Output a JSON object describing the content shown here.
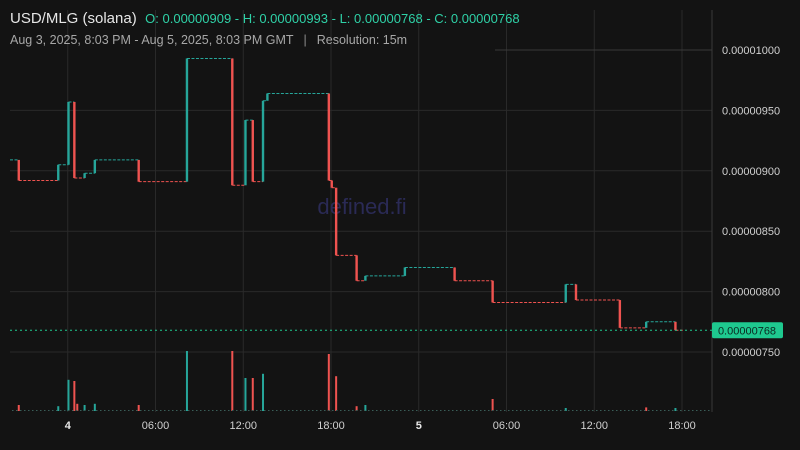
{
  "header": {
    "pair": "USD/MLG (solana)",
    "ohlc": "O: 0.00000909 - H: 0.00000993 - L: 0.00000768 - C: 0.00000768",
    "range": "Aug 3, 2025, 8:03 PM - Aug 5, 2025, 8:03 PM GMT",
    "separator": "|",
    "resolution": "Resolution: 15m"
  },
  "watermark": "defined.fi",
  "colors": {
    "background": "#131313",
    "up": "#26a69a",
    "down": "#ef5350",
    "grid": "#2a2a2a",
    "last_price": "#1ec98f"
  },
  "chart_data": {
    "type": "candlestick",
    "y_axis": {
      "ticks": [
        "0.00001000",
        "0.00000950",
        "0.00000900",
        "0.00000850",
        "0.00000800",
        "0.00000750"
      ],
      "tick_values": [
        1e-05,
        9.5e-06,
        9e-06,
        8.5e-06,
        8e-06,
        7.5e-06
      ]
    },
    "x_axis": {
      "ticks": [
        {
          "label": "4",
          "hour": 3.95,
          "bold": true
        },
        {
          "label": "06:00",
          "hour": 9.95,
          "bold": false
        },
        {
          "label": "12:00",
          "hour": 15.95,
          "bold": false
        },
        {
          "label": "18:00",
          "hour": 21.95,
          "bold": false
        },
        {
          "label": "5",
          "hour": 27.95,
          "bold": true
        },
        {
          "label": "06:00",
          "hour": 33.95,
          "bold": false
        },
        {
          "label": "12:00",
          "hour": 39.95,
          "bold": false
        },
        {
          "label": "18:00",
          "hour": 45.95,
          "bold": false
        }
      ]
    },
    "last_price": "0.00000768",
    "last_price_value": 7.68e-06,
    "price_segments": [
      {
        "x0": 0,
        "x1": 0.6,
        "v": 9.09e-06
      },
      {
        "x0": 0.6,
        "x1": 3.3,
        "v": 8.92e-06
      },
      {
        "x0": 3.3,
        "x1": 4.0,
        "v": 9.05e-06
      },
      {
        "x0": 4.0,
        "x1": 4.4,
        "v": 9.57e-06
      },
      {
        "x0": 4.4,
        "x1": 5.1,
        "v": 8.94e-06
      },
      {
        "x0": 5.1,
        "x1": 5.8,
        "v": 8.98e-06
      },
      {
        "x0": 5.8,
        "x1": 8.8,
        "v": 9.09e-06
      },
      {
        "x0": 8.8,
        "x1": 12.1,
        "v": 8.91e-06
      },
      {
        "x0": 12.1,
        "x1": 15.2,
        "v": 9.93e-06
      },
      {
        "x0": 15.2,
        "x1": 16.1,
        "v": 8.88e-06
      },
      {
        "x0": 16.1,
        "x1": 16.6,
        "v": 9.42e-06
      },
      {
        "x0": 16.6,
        "x1": 17.3,
        "v": 8.91e-06
      },
      {
        "x0": 17.3,
        "x1": 17.6,
        "v": 9.58e-06
      },
      {
        "x0": 17.6,
        "x1": 21.8,
        "v": 9.64e-06
      },
      {
        "x0": 21.8,
        "x1": 22.0,
        "v": 8.92e-06
      },
      {
        "x0": 22.0,
        "x1": 22.3,
        "v": 8.86e-06
      },
      {
        "x0": 22.3,
        "x1": 23.7,
        "v": 8.3e-06
      },
      {
        "x0": 23.7,
        "x1": 24.3,
        "v": 8.09e-06
      },
      {
        "x0": 24.3,
        "x1": 27.0,
        "v": 8.13e-06
      },
      {
        "x0": 27.0,
        "x1": 30.4,
        "v": 8.2e-06
      },
      {
        "x0": 30.4,
        "x1": 33.0,
        "v": 8.09e-06
      },
      {
        "x0": 33.0,
        "x1": 38.0,
        "v": 7.91e-06
      },
      {
        "x0": 38.0,
        "x1": 38.7,
        "v": 8.06e-06
      },
      {
        "x0": 38.7,
        "x1": 41.7,
        "v": 7.93e-06
      },
      {
        "x0": 41.7,
        "x1": 43.5,
        "v": 7.7e-06
      },
      {
        "x0": 43.5,
        "x1": 45.5,
        "v": 7.75e-06
      },
      {
        "x0": 45.5,
        "x1": 46.0,
        "v": 7.68e-06
      }
    ],
    "candles": [
      {
        "t": 0.6,
        "o": 9.09e-06,
        "c": 8.92e-06
      },
      {
        "t": 3.3,
        "o": 8.92e-06,
        "c": 9.05e-06
      },
      {
        "t": 4.0,
        "o": 9.05e-06,
        "c": 9.57e-06
      },
      {
        "t": 4.4,
        "o": 9.57e-06,
        "c": 8.94e-06
      },
      {
        "t": 5.1,
        "o": 8.94e-06,
        "c": 8.98e-06
      },
      {
        "t": 5.8,
        "o": 8.98e-06,
        "c": 9.09e-06
      },
      {
        "t": 8.8,
        "o": 9.09e-06,
        "c": 8.91e-06
      },
      {
        "t": 12.1,
        "o": 8.91e-06,
        "c": 9.93e-06
      },
      {
        "t": 15.2,
        "o": 9.93e-06,
        "c": 8.88e-06
      },
      {
        "t": 16.1,
        "o": 8.88e-06,
        "c": 9.42e-06
      },
      {
        "t": 16.6,
        "o": 9.42e-06,
        "c": 8.91e-06
      },
      {
        "t": 17.3,
        "o": 8.91e-06,
        "c": 9.58e-06
      },
      {
        "t": 17.6,
        "o": 9.58e-06,
        "c": 9.64e-06
      },
      {
        "t": 21.8,
        "o": 9.64e-06,
        "c": 8.92e-06
      },
      {
        "t": 22.0,
        "o": 8.92e-06,
        "c": 8.86e-06
      },
      {
        "t": 22.3,
        "o": 8.86e-06,
        "c": 8.3e-06
      },
      {
        "t": 23.7,
        "o": 8.3e-06,
        "c": 8.09e-06
      },
      {
        "t": 24.3,
        "o": 8.09e-06,
        "c": 8.13e-06
      },
      {
        "t": 27.0,
        "o": 8.13e-06,
        "c": 8.2e-06
      },
      {
        "t": 30.4,
        "o": 8.2e-06,
        "c": 8.09e-06
      },
      {
        "t": 33.0,
        "o": 8.09e-06,
        "c": 7.91e-06
      },
      {
        "t": 38.0,
        "o": 7.91e-06,
        "c": 8.06e-06
      },
      {
        "t": 38.7,
        "o": 8.06e-06,
        "c": 7.93e-06
      },
      {
        "t": 41.7,
        "o": 7.93e-06,
        "c": 7.7e-06
      },
      {
        "t": 43.5,
        "o": 7.7e-06,
        "c": 7.75e-06
      },
      {
        "t": 45.5,
        "o": 7.75e-06,
        "c": 7.68e-06
      }
    ],
    "volume_bars": [
      {
        "t": 0.6,
        "v": 0.1,
        "dir": "down"
      },
      {
        "t": 3.3,
        "v": 0.08,
        "dir": "up"
      },
      {
        "t": 4.0,
        "v": 0.52,
        "dir": "up"
      },
      {
        "t": 4.4,
        "v": 0.5,
        "dir": "down"
      },
      {
        "t": 4.6,
        "v": 0.12,
        "dir": "down"
      },
      {
        "t": 5.1,
        "v": 0.1,
        "dir": "up"
      },
      {
        "t": 5.8,
        "v": 0.12,
        "dir": "up"
      },
      {
        "t": 8.8,
        "v": 0.1,
        "dir": "down"
      },
      {
        "t": 12.1,
        "v": 1.0,
        "dir": "up"
      },
      {
        "t": 15.2,
        "v": 1.0,
        "dir": "down"
      },
      {
        "t": 16.1,
        "v": 0.55,
        "dir": "up"
      },
      {
        "t": 16.6,
        "v": 0.55,
        "dir": "down"
      },
      {
        "t": 17.3,
        "v": 0.62,
        "dir": "up"
      },
      {
        "t": 21.8,
        "v": 0.95,
        "dir": "down"
      },
      {
        "t": 22.3,
        "v": 0.58,
        "dir": "down"
      },
      {
        "t": 23.7,
        "v": 0.08,
        "dir": "down"
      },
      {
        "t": 24.3,
        "v": 0.1,
        "dir": "up"
      },
      {
        "t": 33.0,
        "v": 0.2,
        "dir": "down"
      },
      {
        "t": 38.0,
        "v": 0.05,
        "dir": "up"
      },
      {
        "t": 43.5,
        "v": 0.06,
        "dir": "down"
      },
      {
        "t": 45.5,
        "v": 0.05,
        "dir": "up"
      }
    ]
  }
}
